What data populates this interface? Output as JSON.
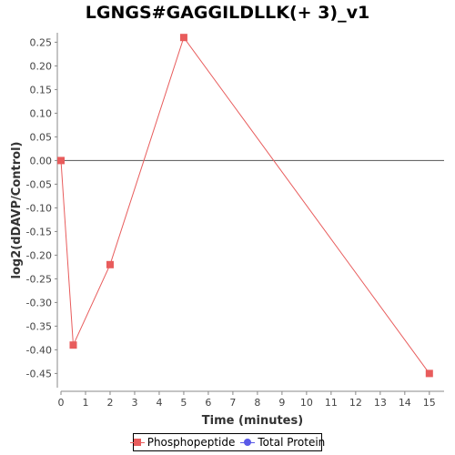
{
  "chart_data": {
    "type": "line",
    "title": "LGNGS#GAGGILDLLK(+ 3)_v1",
    "xlabel": "Time (minutes)",
    "ylabel": "log2(dDAVP/Control)",
    "xlim": [
      0,
      15.6
    ],
    "ylim": [
      -0.48,
      0.27
    ],
    "x_ticks": [
      0,
      1,
      2,
      3,
      4,
      5,
      6,
      7,
      8,
      9,
      10,
      11,
      12,
      13,
      14,
      15
    ],
    "y_ticks": [
      0.25,
      0.2,
      0.15,
      0.1,
      0.05,
      0.0,
      -0.05,
      -0.1,
      -0.15,
      -0.2,
      -0.25,
      -0.3,
      -0.35,
      -0.4,
      -0.45
    ],
    "y_tick_labels": [
      "0.25",
      "0.20",
      "0.15",
      "0.10",
      "0.05",
      "0.00",
      "-0.05",
      "-0.10",
      "-0.15",
      "-0.20",
      "-0.25",
      "-0.30",
      "-0.35",
      "-0.40",
      "-0.45"
    ],
    "zero_line": true,
    "grid": false,
    "legend_position": "bottom",
    "series": [
      {
        "name": "Phosphopeptide",
        "color": "#e85c5c",
        "marker": "square",
        "x": [
          0,
          0.5,
          2,
          5,
          15
        ],
        "y": [
          0.0,
          -0.39,
          -0.22,
          0.26,
          -0.45
        ]
      },
      {
        "name": "Total Protein",
        "color": "#5a5ae8",
        "marker": "circle",
        "x": [],
        "y": []
      }
    ]
  }
}
